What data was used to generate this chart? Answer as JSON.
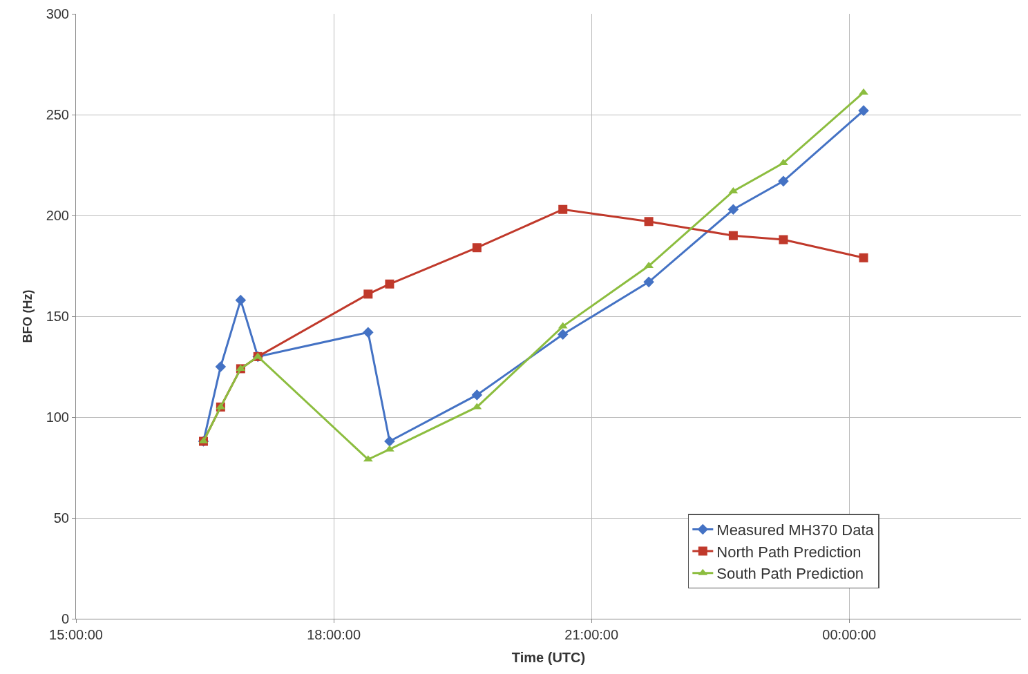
{
  "chart_data": {
    "type": "line",
    "xlabel": "Time (UTC)",
    "ylabel": "BFO (Hz)",
    "x": [
      "--03-07T16:29",
      "--03-07T16:41",
      "--03-07T16:55",
      "--03-07T17:07",
      "--03-07T18:24",
      "--03-07T18:39",
      "--03-07T19:40",
      "--03-07T20:40",
      "--03-07T21:40",
      "--03-07T22:39",
      "--03-07T23:14",
      "--03-08T00:10"
    ],
    "series": [
      {
        "name": "Measured MH370 Data",
        "color": "#4472c4",
        "marker": "diamond",
        "values": [
          88,
          125,
          158,
          130,
          142,
          88,
          111,
          141,
          167,
          203,
          217,
          252
        ]
      },
      {
        "name": "North Path Prediction",
        "color": "#c0392b",
        "marker": "square",
        "values": [
          88,
          105,
          124,
          130,
          161,
          166,
          184,
          203,
          197,
          190,
          188,
          179
        ]
      },
      {
        "name": "South Path Prediction",
        "color": "#8cbd3f",
        "marker": "triangle",
        "values": [
          88,
          105,
          124,
          130,
          79,
          84,
          105,
          145,
          175,
          212,
          226,
          261
        ]
      }
    ],
    "xlim": [
      "--03-07T15:00",
      "--03-08T02:00"
    ],
    "xticks": [
      {
        "value": "--03-07T15:00",
        "label": "15:00:00"
      },
      {
        "value": "--03-07T18:00",
        "label": "18:00:00"
      },
      {
        "value": "--03-07T21:00",
        "label": "21:00:00"
      },
      {
        "value": "--03-08T00:00",
        "label": "00:00:00"
      }
    ],
    "ylim": [
      0,
      300
    ],
    "yticks": [
      0,
      50,
      100,
      150,
      200,
      250,
      300
    ],
    "grid": true,
    "legend": "bottom right",
    "line_style": "solid"
  }
}
